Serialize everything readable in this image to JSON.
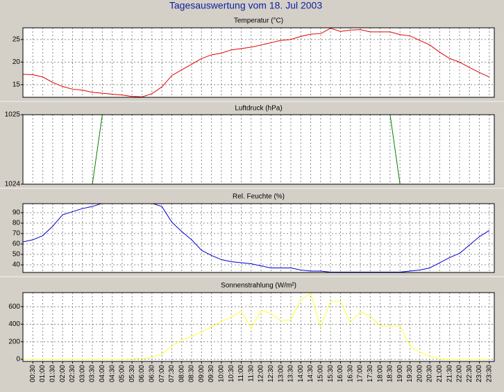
{
  "title": "Tagesauswertung vom 18. Jul 2003",
  "chart_data": [
    {
      "type": "line",
      "title": "Temperatur (°C)",
      "color": "#e00000",
      "x": [
        0,
        0.5,
        1,
        1.5,
        2,
        2.5,
        3,
        3.5,
        4,
        4.5,
        5,
        5.5,
        6,
        6.5,
        7,
        7.5,
        8,
        8.5,
        9,
        9.5,
        10,
        10.5,
        11,
        11.5,
        12,
        12.5,
        13,
        13.5,
        14,
        14.5,
        15,
        15.5,
        16,
        16.5,
        17,
        17.5,
        18,
        18.5,
        19,
        19.5,
        20,
        20.5,
        21,
        21.5,
        22,
        22.5,
        23,
        23.5
      ],
      "values": [
        17.3,
        17.2,
        16.7,
        15.5,
        14.6,
        14.0,
        13.8,
        13.3,
        13.1,
        12.9,
        12.7,
        12.4,
        12.3,
        13.0,
        14.5,
        17.0,
        18.3,
        19.5,
        20.8,
        21.6,
        22.0,
        22.7,
        23.0,
        23.3,
        23.8,
        24.3,
        24.8,
        25.0,
        25.7,
        26.2,
        26.3,
        27.5,
        26.8,
        27.1,
        27.2,
        26.7,
        26.7,
        26.7,
        26.1,
        25.8,
        24.8,
        23.8,
        22.2,
        20.8,
        20.0,
        18.8,
        17.7,
        16.7
      ],
      "xlim": [
        0,
        23.75
      ],
      "ylim": [
        12.2,
        27.6
      ],
      "yticks": [
        15,
        20,
        25
      ],
      "grid": true
    },
    {
      "type": "line",
      "title": "Luftdruck (hPa)",
      "color": "#008000",
      "x": [
        0,
        0.5,
        1,
        1.5,
        2,
        2.5,
        3,
        3.5,
        4,
        4.5,
        5,
        5.5,
        6,
        6.5,
        7,
        7.5,
        8,
        8.5,
        9,
        9.5,
        10,
        10.5,
        11,
        11.5,
        12,
        12.5,
        13,
        13.5,
        14,
        14.5,
        15,
        15.5,
        16,
        16.5,
        17,
        17.5,
        18,
        18.5,
        19,
        19.5,
        20,
        20.5,
        21,
        21.5,
        22,
        22.5,
        23,
        23.5
      ],
      "values": [
        1024,
        1024,
        1024,
        1024,
        1024,
        1024,
        1024,
        1024,
        1025,
        1025,
        1025,
        1025,
        1025,
        1025,
        1025,
        1025,
        1025,
        1025,
        1025,
        1025,
        1025,
        1025,
        1025,
        1025,
        1025,
        1025,
        1025,
        1025,
        1025,
        1025,
        1025,
        1025,
        1025,
        1025,
        1025,
        1025,
        1025,
        1025,
        1024,
        1024,
        1024,
        1024,
        1024,
        1024,
        1024,
        1024,
        1024,
        1024
      ],
      "xlim": [
        0,
        23.75
      ],
      "ylim": [
        1024,
        1025
      ],
      "yticks": [
        1024,
        1025
      ],
      "grid": true
    },
    {
      "type": "line",
      "title": "Rel. Feuchte (%)",
      "color": "#0000d0",
      "x": [
        0,
        0.5,
        1,
        1.5,
        2,
        2.5,
        3,
        3.5,
        4,
        4.5,
        5,
        5.5,
        6,
        6.5,
        7,
        7.5,
        8,
        8.5,
        9,
        9.5,
        10,
        10.5,
        11,
        11.5,
        12,
        12.5,
        13,
        13.5,
        14,
        14.5,
        15,
        15.5,
        16,
        16.5,
        17,
        17.5,
        18,
        18.5,
        19,
        19.5,
        20,
        20.5,
        21,
        21.5,
        22,
        22.5,
        23,
        23.5
      ],
      "values": [
        62,
        64,
        68,
        77,
        88,
        91,
        94,
        96,
        99,
        100,
        100,
        100,
        100,
        99,
        96,
        81,
        72,
        64,
        54,
        49,
        45,
        43,
        42,
        41,
        39,
        37,
        37,
        37,
        35,
        34,
        34,
        33,
        33,
        33,
        33,
        33,
        33,
        33,
        33,
        34,
        35,
        37,
        42,
        47,
        51,
        59,
        67,
        73
      ],
      "xlim": [
        0,
        23.75
      ],
      "ylim": [
        32.7,
        98.7
      ],
      "yticks": [
        40,
        50,
        60,
        70,
        80,
        90
      ],
      "grid": true
    },
    {
      "type": "line",
      "title": "Sonnenstrahlung (W/m²)",
      "color": "#ffff30",
      "x": [
        0,
        0.5,
        1,
        1.5,
        2,
        2.5,
        3,
        3.5,
        4,
        4.5,
        5,
        5.5,
        6,
        6.5,
        7,
        7.5,
        8,
        8.5,
        9,
        9.5,
        10,
        10.5,
        11,
        11.5,
        12,
        12.5,
        13,
        13.5,
        14,
        14.5,
        15,
        15.5,
        16,
        16.5,
        17,
        17.5,
        18,
        18.5,
        19,
        19.5,
        20,
        20.5,
        21,
        21.5,
        22,
        22.5,
        23,
        23.5
      ],
      "values": [
        0,
        0,
        0,
        0,
        0,
        0,
        0,
        0,
        0,
        0,
        0,
        5,
        10,
        20,
        60,
        150,
        220,
        260,
        310,
        370,
        430,
        480,
        550,
        350,
        560,
        520,
        440,
        450,
        680,
        750,
        370,
        660,
        660,
        420,
        540,
        490,
        380,
        380,
        380,
        150,
        80,
        40,
        5,
        0,
        0,
        0,
        0,
        0
      ],
      "xlim": [
        0,
        23.75
      ],
      "ylim": [
        -24,
        760
      ],
      "yticks": [
        0,
        200,
        400,
        600
      ],
      "grid": true,
      "xticks": [
        {
          "value": 0.5,
          "label": "00:30"
        },
        {
          "value": 1,
          "label": "01:00"
        },
        {
          "value": 1.5,
          "label": "01:30"
        },
        {
          "value": 2,
          "label": "02:00"
        },
        {
          "value": 2.5,
          "label": "02:30"
        },
        {
          "value": 3,
          "label": "03:00"
        },
        {
          "value": 3.5,
          "label": "03:30"
        },
        {
          "value": 4,
          "label": "04:00"
        },
        {
          "value": 4.5,
          "label": "04:30"
        },
        {
          "value": 5,
          "label": "05:00"
        },
        {
          "value": 5.5,
          "label": "05:30"
        },
        {
          "value": 6,
          "label": "06:00"
        },
        {
          "value": 6.5,
          "label": "06:30"
        },
        {
          "value": 7,
          "label": "07:00"
        },
        {
          "value": 7.5,
          "label": "07:30"
        },
        {
          "value": 8,
          "label": "08:00"
        },
        {
          "value": 8.5,
          "label": "08:30"
        },
        {
          "value": 9,
          "label": "09:00"
        },
        {
          "value": 9.5,
          "label": "09:30"
        },
        {
          "value": 10,
          "label": "10:00"
        },
        {
          "value": 10.5,
          "label": "10:30"
        },
        {
          "value": 11,
          "label": "11:00"
        },
        {
          "value": 11.5,
          "label": "11:30"
        },
        {
          "value": 12,
          "label": "12:00"
        },
        {
          "value": 12.5,
          "label": "12:30"
        },
        {
          "value": 13,
          "label": "13:00"
        },
        {
          "value": 13.5,
          "label": "13:30"
        },
        {
          "value": 14,
          "label": "14:00"
        },
        {
          "value": 14.5,
          "label": "14:30"
        },
        {
          "value": 15,
          "label": "15:00"
        },
        {
          "value": 15.5,
          "label": "15:30"
        },
        {
          "value": 16,
          "label": "16:00"
        },
        {
          "value": 16.5,
          "label": "16:30"
        },
        {
          "value": 17,
          "label": "17:00"
        },
        {
          "value": 17.5,
          "label": "17:30"
        },
        {
          "value": 18,
          "label": "18:00"
        },
        {
          "value": 18.5,
          "label": "18:30"
        },
        {
          "value": 19,
          "label": "19:00"
        },
        {
          "value": 19.5,
          "label": "19:30"
        },
        {
          "value": 20,
          "label": "20:00"
        },
        {
          "value": 20.5,
          "label": "20:30"
        },
        {
          "value": 21,
          "label": "21:00"
        },
        {
          "value": 21.5,
          "label": "21:30"
        },
        {
          "value": 22,
          "label": "22:00"
        },
        {
          "value": 22.5,
          "label": "22:30"
        },
        {
          "value": 23,
          "label": "23:00"
        },
        {
          "value": 23.5,
          "label": "23:30"
        }
      ]
    }
  ]
}
